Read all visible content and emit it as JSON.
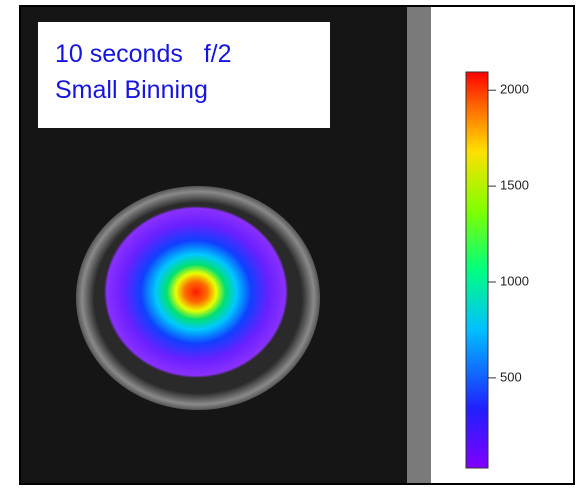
{
  "label": {
    "lines": [
      "10 seconds   f/2",
      "Small Binning"
    ]
  },
  "colorbar": {
    "lim": [
      30,
      2095
    ],
    "ticks": [
      500,
      1000,
      1500,
      2000
    ]
  }
}
